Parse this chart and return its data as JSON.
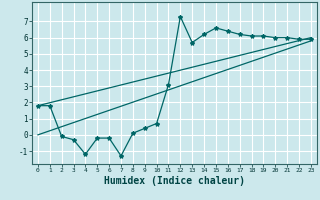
{
  "xlabel": "Humidex (Indice chaleur)",
  "ylabel": "",
  "xlim": [
    -0.5,
    23.5
  ],
  "ylim": [
    -1.8,
    8.2
  ],
  "yticks": [
    -1,
    0,
    1,
    2,
    3,
    4,
    5,
    6,
    7
  ],
  "xticks": [
    0,
    1,
    2,
    3,
    4,
    5,
    6,
    7,
    8,
    9,
    10,
    11,
    12,
    13,
    14,
    15,
    16,
    17,
    18,
    19,
    20,
    21,
    22,
    23
  ],
  "bg_color": "#cce8ec",
  "grid_color": "#ffffff",
  "line_color": "#006666",
  "jagged_x": [
    0,
    1,
    2,
    3,
    4,
    5,
    6,
    7,
    8,
    9,
    10,
    11,
    12,
    13,
    14,
    15,
    16,
    17,
    18,
    19,
    20,
    21,
    22,
    23
  ],
  "jagged_y": [
    1.8,
    1.8,
    -0.1,
    -0.3,
    -1.2,
    -0.2,
    -0.2,
    -1.3,
    0.1,
    0.4,
    0.7,
    3.1,
    7.3,
    5.7,
    6.2,
    6.6,
    6.4,
    6.2,
    6.1,
    6.1,
    6.0,
    6.0,
    5.9,
    5.9
  ],
  "line1_x": [
    0,
    23
  ],
  "line1_y": [
    1.8,
    6.0
  ],
  "line2_x": [
    0,
    23
  ],
  "line2_y": [
    0.0,
    5.8
  ],
  "xlabel_fontsize": 7,
  "tick_fontsize_x": 4.5,
  "tick_fontsize_y": 5.5
}
